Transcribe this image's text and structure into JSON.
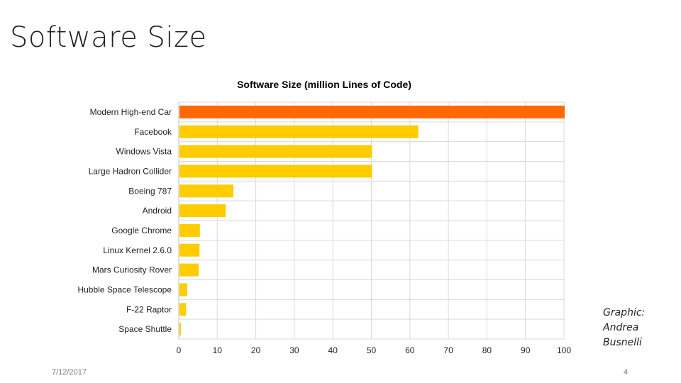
{
  "slide": {
    "title": "Software Size",
    "credit_lines": [
      "Graphic:",
      "Andrea",
      "Busnelli"
    ],
    "date": "7/12/2017",
    "page_number": "4"
  },
  "chart_data": {
    "type": "bar",
    "orientation": "horizontal",
    "title": "Software Size (million Lines of Code)",
    "xlabel": "",
    "ylabel": "",
    "xlim": [
      0,
      100
    ],
    "xticks": [
      0,
      10,
      20,
      30,
      40,
      50,
      60,
      70,
      80,
      90,
      100
    ],
    "grid": true,
    "categories": [
      "Modern High-end Car",
      "Facebook",
      "Windows Vista",
      "Large Hadron Collider",
      "Boeing 787",
      "Android",
      "Google Chrome",
      "Linux Kernel 2.6.0",
      "Mars Curiosity Rover",
      "Hubble Space Telescope",
      "F-22 Raptor",
      "Space Shuttle"
    ],
    "values": [
      100,
      62,
      50,
      50,
      14,
      12,
      5.3,
      5.2,
      5,
      2,
      1.7,
      0.4
    ],
    "colors": {
      "highlight": "#ff6a00",
      "default": "#ffcc00",
      "grid": "#d9d9d9",
      "axis": "#bfbfbf"
    },
    "highlight_index": 0
  }
}
